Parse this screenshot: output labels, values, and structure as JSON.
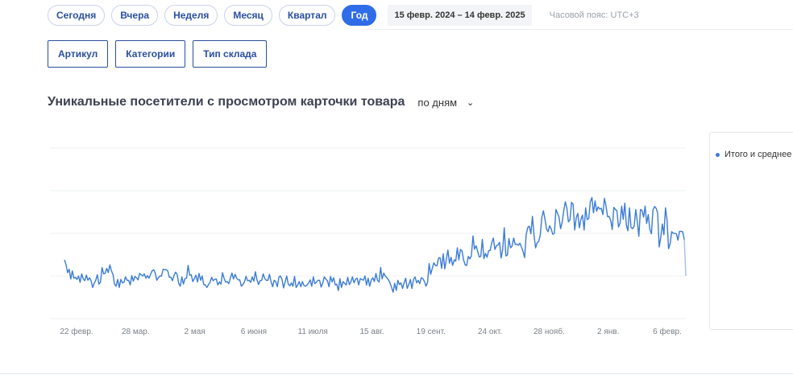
{
  "periods": [
    {
      "label": "Сегодня",
      "active": false
    },
    {
      "label": "Вчера",
      "active": false
    },
    {
      "label": "Неделя",
      "active": false
    },
    {
      "label": "Месяц",
      "active": false
    },
    {
      "label": "Квартал",
      "active": false
    },
    {
      "label": "Год",
      "active": true
    }
  ],
  "date_range": "15 февр. 2024  –  14 февр. 2025",
  "timezone": "Часовой пояс: UTC+3",
  "filters": [
    "Артикул",
    "Категории",
    "Тип склада"
  ],
  "chart_title": "Уникальные посетители с просмотром карточки товара",
  "granularity": "по дням",
  "colors": {
    "accent": "#2f6de8",
    "line": "#3a7bd5",
    "grid": "#eef0f3"
  },
  "chart_data": {
    "type": "line",
    "title": "Уникальные посетители с просмотром карточки товара",
    "x_tick_labels": [
      "22 февр.",
      "28 мар.",
      "2 мая",
      "6 июня",
      "11 июля",
      "15 авг.",
      "19 сент.",
      "24 окт.",
      "28 нояб.",
      "2 янв.",
      "6 февр."
    ],
    "y_range": [
      0,
      4
    ],
    "y_tick_labels_visible": false,
    "grid": true,
    "legend": "right",
    "series": [
      {
        "name": "Итого и среднее",
        "values": [
          1.38,
          1.27,
          1.08,
          1.16,
          0.93,
          1.12,
          0.95,
          0.97,
          0.92,
          1.0,
          0.85,
          1.05,
          0.93,
          0.89,
          1.02,
          0.9,
          0.96,
          0.89,
          0.73,
          0.83,
          0.9,
          1.03,
          0.81,
          0.86,
          1.2,
          1.05,
          1.06,
          1.18,
          1.08,
          1.26,
          1.12,
          1.04,
          0.81,
          0.76,
          0.92,
          0.73,
          0.92,
          0.84,
          0.85,
          0.98,
          0.9,
          0.9,
          0.79,
          1.01,
          0.88,
          0.99,
          0.96,
          0.91,
          1.06,
          1.03,
          1.0,
          1.05,
          0.95,
          1.01,
          0.95,
          1.04,
          1.12,
          1.15,
          1.07,
          0.9,
          0.96,
          1.0,
          1.0,
          1.16,
          1.15,
          1.15,
          1.12,
          0.97,
          0.97,
          0.89,
          1.01,
          1.09,
          1.04,
          0.82,
          0.76,
          0.98,
          0.81,
          0.94,
          0.95,
          1.25,
          1.02,
          1.03,
          0.87,
          0.94,
          1.02,
          0.86,
          1.06,
          0.9,
          1.0,
          0.8,
          0.79,
          0.73,
          0.8,
          0.85,
          0.97,
          0.89,
          0.92,
          0.93,
          0.79,
          0.86,
          0.81,
          1.08,
          0.94,
          0.86,
          0.87,
          0.82,
          0.96,
          1.07,
          0.93,
          1.04,
          0.95,
          0.91,
          0.91,
          0.76,
          0.8,
          0.86,
          0.99,
          0.89,
          0.9,
          0.85,
          0.98,
          0.88,
          1.1,
          0.91,
          0.8,
          0.89,
          0.9,
          1.05,
          0.94,
          0.9,
          0.9,
          1.04,
          0.86,
          0.75,
          0.9,
          0.87,
          0.75,
          0.98,
          1.0,
          0.92,
          0.72,
          0.86,
          1.0,
          0.81,
          0.77,
          0.84,
          0.76,
          0.99,
          0.73,
          0.79,
          0.87,
          0.75,
          0.87,
          0.78,
          0.76,
          0.79,
          0.84,
          0.91,
          0.76,
          0.98,
          0.82,
          0.86,
          0.9,
          0.9,
          0.74,
          0.83,
          0.98,
          0.93,
          0.89,
          0.75,
          0.99,
          0.86,
          0.96,
          0.79,
          0.81,
          0.66,
          0.94,
          0.73,
          0.87,
          0.83,
          0.79,
          0.97,
          0.8,
          0.86,
          0.98,
          0.84,
          0.93,
          0.95,
          0.79,
          0.94,
          0.92,
          0.9,
          1.0,
          0.79,
          0.95,
          0.76,
          0.9,
          0.96,
          0.87,
          1.06,
          0.9,
          0.86,
          1.2,
          0.93,
          1.07,
          1.0,
          0.96,
          0.91,
          0.84,
          0.73,
          0.62,
          0.83,
          0.66,
          0.9,
          0.8,
          0.84,
          0.71,
          0.84,
          0.95,
          0.71,
          0.8,
          0.92,
          0.71,
          0.92,
          0.98,
          0.84,
          0.9,
          0.82,
          0.96,
          0.94,
          0.87,
          0.76,
          0.86,
          1.29,
          1.04,
          1.18,
          1.31,
          1.25,
          1.24,
          1.42,
          1.43,
          1.18,
          1.52,
          1.17,
          1.4,
          1.61,
          1.3,
          1.44,
          1.25,
          1.38,
          1.35,
          1.66,
          1.38,
          1.62,
          1.59,
          1.38,
          1.26,
          1.25,
          1.46,
          1.4,
          1.47,
          1.94,
          1.63,
          1.71,
          1.58,
          1.45,
          1.46,
          1.86,
          1.41,
          1.53,
          1.44,
          1.59,
          1.6,
          1.78,
          1.89,
          1.62,
          1.71,
          1.73,
          1.79,
          1.42,
          1.63,
          2.13,
          1.47,
          1.49,
          1.88,
          1.66,
          1.7,
          1.89,
          1.74,
          1.75,
          1.72,
          1.77,
          1.68,
          1.58,
          1.43,
          1.97,
          2.14,
          2.17,
          1.99,
          2.4,
          1.96,
          1.66,
          1.78,
          1.81,
          1.96,
          2.37,
          2.53,
          2.34,
          2.1,
          2.04,
          2.18,
          2.1,
          1.98,
          2.0,
          2.56,
          2.47,
          2.38,
          2.11,
          2.26,
          2.53,
          2.74,
          2.59,
          2.27,
          2.32,
          2.73,
          2.68,
          2.08,
          2.37,
          2.47,
          2.13,
          2.33,
          2.43,
          2.08,
          2.6,
          2.32,
          2.35,
          2.74,
          2.84,
          2.48,
          2.76,
          2.52,
          2.62,
          2.57,
          2.59,
          2.44,
          2.82,
          2.64,
          2.39,
          2.4,
          2.3,
          2.09,
          2.61,
          2.56,
          2.53,
          2.15,
          2.24,
          2.64,
          2.33,
          2.71,
          2.2,
          2.06,
          2.6,
          2.14,
          2.11,
          2.17,
          2.56,
          2.28,
          1.93,
          2.56,
          2.54,
          2.38,
          2.64,
          2.23,
          2.44,
          2.1,
          1.99,
          2.54,
          2.63,
          2.59,
          2.48,
          1.68,
          1.91,
          2.22,
          1.97,
          2.6,
          2.31,
          1.64,
          1.76,
          2.04,
          2.0,
          2.0,
          1.99,
          1.84,
          2.05,
          2.05,
          2.04,
          1.85,
          1.0
        ]
      }
    ]
  }
}
